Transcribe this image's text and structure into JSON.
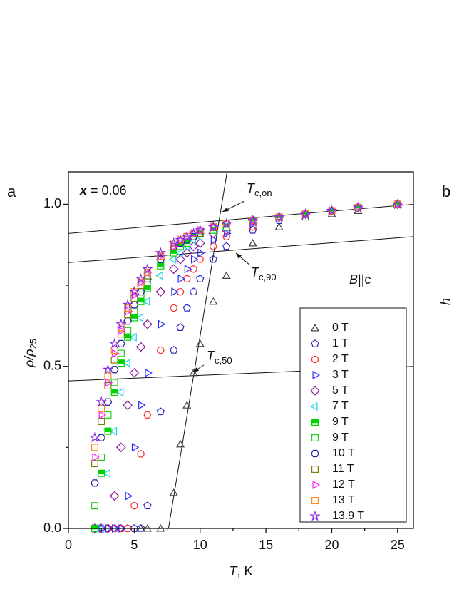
{
  "chart_data": {
    "type": "scatter",
    "panel_label": "a",
    "next_panel": {
      "label": "b",
      "ylabel_fragment": "h"
    },
    "sample_label": {
      "variable": "x",
      "text": "= 0.06"
    },
    "field_label": {
      "symbol": "B",
      "text": "||c"
    },
    "xlabel": {
      "symbol": "T",
      "text": ", K"
    },
    "ylabel": {
      "text": "ρ/ρ",
      "subscript": "25"
    },
    "xlim": [
      0,
      26.2
    ],
    "ylim": [
      0,
      1.1
    ],
    "xticks": [
      0,
      5,
      10,
      15,
      20,
      25
    ],
    "xminorticks": [
      2.5,
      7.5,
      12.5,
      17.5,
      22.5
    ],
    "yticks": [
      {
        "value": 0,
        "label": "0.0"
      },
      0.5,
      {
        "value": 1,
        "label": "1.0"
      }
    ],
    "yminorticks": [
      0.25,
      0.75
    ],
    "legend": "lower right",
    "annotations": [
      {
        "symbol": "T",
        "subscript": "c,on"
      },
      {
        "symbol": "T",
        "subscript": "c,90"
      },
      {
        "symbol": "T",
        "subscript": "c,50"
      }
    ],
    "fit_lines": [
      {
        "x": [
          0,
          26.2
        ],
        "y": [
          0.91,
          1.0
        ]
      },
      {
        "x": [
          0,
          26.2
        ],
        "y": [
          0.82,
          0.9
        ]
      },
      {
        "x": [
          0,
          26.2
        ],
        "y": [
          0.455,
          0.5
        ]
      },
      {
        "x": [
          7.6,
          12.05
        ],
        "y": [
          0,
          1.1
        ]
      }
    ],
    "x": [
      2,
      2.5,
      3,
      3.5,
      4,
      4.5,
      5,
      5.5,
      6,
      7,
      8,
      8.5,
      9,
      9.5,
      10,
      11,
      12,
      14,
      16,
      18,
      20,
      22,
      25
    ],
    "series": [
      {
        "name": "0 T",
        "color": "#404040",
        "marker": "triangle-up",
        "values": [
          null,
          null,
          null,
          null,
          null,
          null,
          null,
          0,
          0,
          0,
          0.11,
          0.26,
          0.38,
          0.48,
          0.57,
          0.7,
          0.78,
          0.88,
          0.93,
          0.96,
          0.97,
          0.98,
          1.0
        ]
      },
      {
        "name": "1 T",
        "color": "#2a2ac0",
        "marker": "pentagon",
        "values": [
          null,
          null,
          null,
          0,
          0,
          0,
          0,
          0,
          0.07,
          0.36,
          0.55,
          0.62,
          0.68,
          0.73,
          0.77,
          0.83,
          0.87,
          0.92,
          0.95,
          0.97,
          0.98,
          0.99,
          1.0
        ]
      },
      {
        "name": "2 T",
        "color": "#ff2a2a",
        "marker": "circle",
        "values": [
          null,
          0,
          0,
          0,
          0,
          0,
          0.07,
          0.23,
          0.35,
          0.55,
          0.68,
          0.73,
          0.77,
          0.8,
          0.83,
          0.87,
          0.9,
          0.93,
          0.96,
          0.97,
          0.98,
          0.99,
          1.0
        ]
      },
      {
        "name": "3 T",
        "color": "#2a2aff",
        "marker": "triangle-right",
        "values": [
          0,
          0,
          0,
          0,
          0,
          0.1,
          0.25,
          0.38,
          0.48,
          0.63,
          0.73,
          0.77,
          0.8,
          0.83,
          0.85,
          0.89,
          0.91,
          0.94,
          0.96,
          0.97,
          0.98,
          0.99,
          1.0
        ]
      },
      {
        "name": "5 T",
        "color": "#8b1a9b",
        "marker": "diamond",
        "values": [
          0,
          0,
          0,
          0.1,
          0.25,
          0.38,
          0.48,
          0.56,
          0.63,
          0.73,
          0.8,
          0.83,
          0.85,
          0.87,
          0.88,
          0.91,
          0.92,
          0.95,
          0.96,
          0.97,
          0.98,
          0.99,
          1.0
        ]
      },
      {
        "name": "7 T",
        "color": "#1ed2e6",
        "marker": "triangle-left",
        "values": [
          0,
          0,
          0.17,
          0.3,
          0.42,
          0.51,
          0.59,
          0.65,
          0.7,
          0.78,
          0.83,
          0.85,
          0.87,
          0.89,
          0.9,
          0.92,
          0.93,
          0.95,
          0.96,
          0.97,
          0.98,
          0.99,
          1.0
        ]
      },
      {
        "name": "9 T",
        "color": "#00d400",
        "marker": "square-half",
        "values": [
          0,
          0.17,
          0.3,
          0.42,
          0.51,
          0.59,
          0.65,
          0.7,
          0.74,
          0.81,
          0.85,
          0.87,
          0.88,
          0.9,
          0.91,
          0.92,
          0.93,
          0.95,
          0.96,
          0.97,
          0.98,
          0.99,
          1.0
        ]
      },
      {
        "name": "9 T",
        "color": "#22cc22",
        "marker": "square",
        "values": [
          0.07,
          0.22,
          0.35,
          0.45,
          0.54,
          0.61,
          0.67,
          0.72,
          0.76,
          0.82,
          0.86,
          0.88,
          0.89,
          0.9,
          0.91,
          0.93,
          0.94,
          0.95,
          0.96,
          0.97,
          0.98,
          0.99,
          1.0
        ]
      },
      {
        "name": "10 T",
        "color": "#1a1aa8",
        "marker": "hexagon",
        "values": [
          0.14,
          0.28,
          0.39,
          0.49,
          0.57,
          0.64,
          0.69,
          0.73,
          0.77,
          0.83,
          0.87,
          0.88,
          0.89,
          0.9,
          0.91,
          0.93,
          0.94,
          0.95,
          0.96,
          0.97,
          0.98,
          0.99,
          1.0
        ]
      },
      {
        "name": "11 T",
        "color": "#808000",
        "marker": "square",
        "values": [
          0.2,
          0.33,
          0.44,
          0.52,
          0.6,
          0.66,
          0.71,
          0.75,
          0.78,
          0.84,
          0.87,
          0.89,
          0.9,
          0.91,
          0.91,
          0.93,
          0.94,
          0.95,
          0.96,
          0.97,
          0.98,
          0.99,
          1.0
        ]
      },
      {
        "name": "12 T",
        "color": "#ff1aff",
        "marker": "triangle-right",
        "values": [
          0.22,
          0.35,
          0.45,
          0.54,
          0.61,
          0.67,
          0.72,
          0.76,
          0.79,
          0.84,
          0.87,
          0.89,
          0.9,
          0.91,
          0.92,
          0.93,
          0.94,
          0.95,
          0.96,
          0.97,
          0.98,
          0.99,
          1.0
        ]
      },
      {
        "name": "13 T",
        "color": "#ff8c1a",
        "marker": "square",
        "values": [
          0.25,
          0.37,
          0.47,
          0.55,
          0.62,
          0.68,
          0.73,
          0.76,
          0.79,
          0.84,
          0.88,
          0.89,
          0.9,
          0.91,
          0.92,
          0.93,
          0.94,
          0.95,
          0.96,
          0.97,
          0.98,
          0.99,
          1.0
        ]
      },
      {
        "name": "13.9 T",
        "color": "#8a2be2",
        "marker": "star",
        "values": [
          0.28,
          0.39,
          0.49,
          0.57,
          0.63,
          0.69,
          0.73,
          0.77,
          0.8,
          0.85,
          0.88,
          0.89,
          0.9,
          0.91,
          0.92,
          0.93,
          0.94,
          0.95,
          0.96,
          0.97,
          0.98,
          0.99,
          1.0
        ]
      }
    ]
  }
}
